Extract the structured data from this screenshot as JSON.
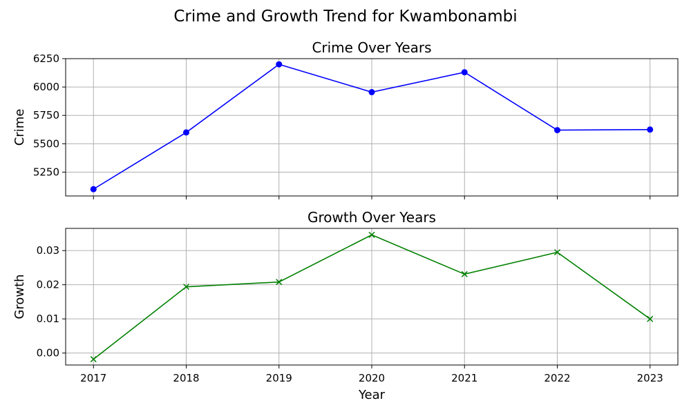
{
  "figure_title": "Crime and Growth Trend for Kwambonambi",
  "colors": {
    "crime": "#0000ff",
    "growth": "#008000",
    "grid": "#b0b0b0",
    "axis": "#000000"
  },
  "chart_data": [
    {
      "type": "line",
      "title": "Crime Over Years",
      "xlabel": "",
      "ylabel": "Crime",
      "x": [
        2017,
        2018,
        2019,
        2020,
        2021,
        2022,
        2023
      ],
      "series": [
        {
          "values": [
            5100,
            5600,
            6200,
            5955,
            6130,
            5620,
            5625
          ],
          "marker": "circle",
          "color": "#0000ff"
        }
      ],
      "xlim": [
        2016.7,
        2023.3
      ],
      "ylim": [
        5040,
        6250
      ],
      "yticks": [
        5250,
        5500,
        5750,
        6000,
        6250
      ],
      "grid": true
    },
    {
      "type": "line",
      "title": "Growth Over Years",
      "xlabel": "Year",
      "ylabel": "Growth",
      "x": [
        2017,
        2018,
        2019,
        2020,
        2021,
        2022,
        2023
      ],
      "series": [
        {
          "values": [
            -0.0018,
            0.0194,
            0.0208,
            0.0346,
            0.0231,
            0.0295,
            0.01
          ],
          "marker": "x",
          "color": "#008000"
        }
      ],
      "xlim": [
        2016.7,
        2023.3
      ],
      "ylim": [
        -0.0035,
        0.0365
      ],
      "yticks": [
        0.0,
        0.01,
        0.02,
        0.03
      ],
      "ytick_labels": [
        "0.00",
        "0.01",
        "0.02",
        "0.03"
      ],
      "grid": true
    }
  ]
}
